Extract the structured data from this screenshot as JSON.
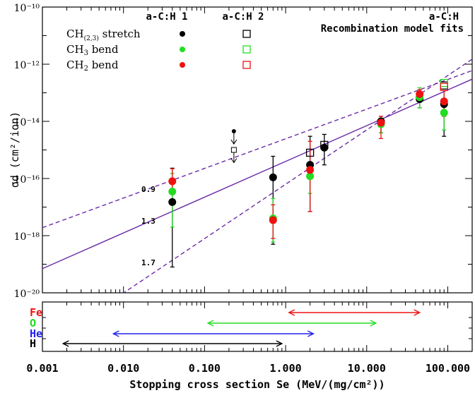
{
  "chart_data": [
    {
      "type": "scatter",
      "title": "",
      "xlabel": "",
      "ylabel": "σd (cm²/ion)",
      "xscale": "log",
      "yscale": "log",
      "xlim": [
        0.001,
        200
      ],
      "ylim": [
        1e-20,
        1e-10
      ],
      "y_tick_labels": [
        "10⁻²⁰",
        "10⁻¹⁸",
        "10⁻¹⁶",
        "10⁻¹⁴",
        "10⁻¹²",
        "10⁻¹⁰"
      ],
      "legend": {
        "col1_header": "a-C:H 1",
        "col2_header": "a-C:H 2",
        "col3_header": "a-C:H",
        "col3_sub": "Recombination model fits",
        "rows": [
          {
            "label": "CH(2,3) stretch",
            "color": "#000000"
          },
          {
            "label": "CH3 bend",
            "color": "#22dd22"
          },
          {
            "label": "CH2 bend",
            "color": "#ee1111"
          }
        ]
      },
      "series": [
        {
          "name": "CH(2,3) stretch",
          "film": "a-C:H 1",
          "color": "#000000",
          "points": [
            {
              "x": 0.04,
              "y": 1.5e-17,
              "ylo": 8e-20,
              "yhi": 2.3e-16
            },
            {
              "x": 0.7,
              "y": 1.1e-16,
              "ylo": 5e-19,
              "yhi": 6e-16
            },
            {
              "x": 2.0,
              "y": 3e-16,
              "ylo": 7e-18,
              "yhi": 3e-15
            },
            {
              "x": 3.0,
              "y": 1.2e-15,
              "ylo": 3e-16,
              "yhi": 3.5e-15
            },
            {
              "x": 15.0,
              "y": 1e-14,
              "ylo": 4e-15,
              "yhi": 1.5e-14
            },
            {
              "x": 45.0,
              "y": 6e-14,
              "ylo": 3e-14,
              "yhi": 1e-13
            },
            {
              "x": 90.0,
              "y": 4e-14,
              "ylo": 3e-15,
              "yhi": 1.2e-13
            }
          ]
        },
        {
          "name": "CH3 bend",
          "film": "a-C:H 1",
          "color": "#22dd22",
          "points": [
            {
              "x": 0.04,
              "y": 3.5e-17,
              "ylo": 2e-18,
              "yhi": 1.5e-16
            },
            {
              "x": 0.7,
              "y": 4e-18,
              "ylo": 6e-19,
              "yhi": 2e-17
            },
            {
              "x": 2.0,
              "y": 1.2e-16,
              "ylo": 3e-17,
              "yhi": 3e-16
            },
            {
              "x": 15.0,
              "y": 8e-15,
              "ylo": 4e-15,
              "yhi": 1.3e-14
            },
            {
              "x": 45.0,
              "y": 7e-14,
              "ylo": 3e-14,
              "yhi": 1.5e-13
            },
            {
              "x": 90.0,
              "y": 2e-14,
              "ylo": 5e-15,
              "yhi": 1.2e-13
            }
          ]
        },
        {
          "name": "CH2 bend",
          "film": "a-C:H 1",
          "color": "#ee1111",
          "points": [
            {
              "x": 0.04,
              "y": 8e-17,
              "ylo": 3e-17,
              "yhi": 2.2e-16
            },
            {
              "x": 0.7,
              "y": 3.5e-18,
              "ylo": 8e-19,
              "yhi": 1.2e-17
            },
            {
              "x": 2.0,
              "y": 2e-16,
              "ylo": 7e-18,
              "yhi": 2e-15
            },
            {
              "x": 15.0,
              "y": 9e-15,
              "ylo": 2.5e-15,
              "yhi": 1.5e-14
            },
            {
              "x": 45.0,
              "y": 9e-14,
              "ylo": 5e-14,
              "yhi": 1.3e-13
            },
            {
              "x": 90.0,
              "y": 5e-14,
              "ylo": 1.5e-14,
              "yhi": 1.2e-13
            }
          ]
        },
        {
          "name": "CH(2,3) stretch",
          "film": "a-C:H 2",
          "color": "#000000",
          "marker": "open-square",
          "points": [
            {
              "x": 2.0,
              "y": 8e-16
            },
            {
              "x": 3.0,
              "y": 1.5e-15
            },
            {
              "x": 90.0,
              "y": 1.8e-13
            }
          ]
        },
        {
          "name": "CH3 bend",
          "film": "a-C:H 2",
          "color": "#22dd22",
          "marker": "open-square",
          "points": [
            {
              "x": 90.0,
              "y": 2.2e-13
            }
          ]
        },
        {
          "name": "CH2 bend",
          "film": "a-C:H 2",
          "color": "#ee1111",
          "marker": "open-square",
          "points": [
            {
              "x": 90.0,
              "y": 1.6e-13
            }
          ]
        }
      ],
      "upper_limit": {
        "x": 0.23,
        "y_filled": 4.5e-15,
        "y_open": 1e-15
      },
      "fits": [
        {
          "label": "0.9",
          "style": "dashed",
          "p1": [
            0.001,
            1.9e-18
          ],
          "p2": [
            200,
            6e-13
          ]
        },
        {
          "label": "1.3",
          "style": "solid",
          "p1": [
            0.001,
            7e-20
          ],
          "p2": [
            200,
            3e-13
          ]
        },
        {
          "label": "1.7",
          "style": "dashed",
          "p1": [
            0.003,
            1e-21
          ],
          "p2": [
            200,
            1.5e-12
          ]
        }
      ],
      "fit_color": "#6a2aa8"
    },
    {
      "type": "range-bars",
      "xlabel": "Stopping cross section Se (MeV/(mg/cm²))",
      "x_tick_labels": [
        "0.001",
        "0.010",
        "0.100",
        "1.000",
        "10.000",
        "100.000"
      ],
      "ranges": [
        {
          "ion": "Fe",
          "color": "#ee1111",
          "x0": 1.1,
          "x1": 45
        },
        {
          "ion": "O",
          "color": "#22dd22",
          "x0": 0.11,
          "x1": 13
        },
        {
          "ion": "He",
          "color": "#2222ee",
          "x0": 0.0075,
          "x1": 2.2
        },
        {
          "ion": "H",
          "color": "#000000",
          "x0": 0.0018,
          "x1": 0.9
        }
      ]
    }
  ]
}
